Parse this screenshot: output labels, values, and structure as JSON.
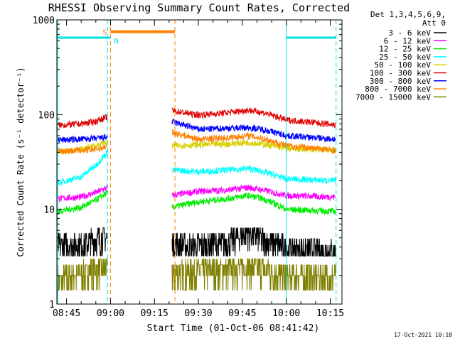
{
  "chart_data": {
    "type": "line",
    "title": "RHESSI Observing Summary Count Rates, Corrected",
    "xlabel": "Start Time (01-Oct-06 08:41:42)",
    "ylabel": "Corrected Count Rate (s⁻¹ detector⁻¹)",
    "y_scale": "log",
    "ylim": [
      1,
      1000
    ],
    "xlim": [
      "08:41:42",
      "10:19:00"
    ],
    "x_ticks": [
      "08:45",
      "09:00",
      "09:15",
      "09:30",
      "09:45",
      "10:00",
      "10:15"
    ],
    "y_ticks": [
      "1",
      "10",
      "100",
      "1000"
    ],
    "legend_position": "top-right",
    "legend_header": [
      "Det 1,3,4,5,6,9,",
      "Att 0"
    ],
    "legend": [
      {
        "label": "3 - 6 keV",
        "color": "#000000"
      },
      {
        "label": "6 - 12 keV",
        "color": "#ff00ff"
      },
      {
        "label": "12 - 25 keV",
        "color": "#00ee00"
      },
      {
        "label": "25 - 50 keV",
        "color": "#00ffff"
      },
      {
        "label": "50 - 100 keV",
        "color": "#d8d000"
      },
      {
        "label": "100 - 300 keV",
        "color": "#e00000"
      },
      {
        "label": "300 - 800 keV",
        "color": "#0000ff"
      },
      {
        "label": "800 - 7000 keV",
        "color": "#ff8000"
      },
      {
        "label": "7000 - 15000 keV",
        "color": "#808000"
      }
    ],
    "flags": {
      "saa": {
        "label": "S",
        "color": "#ff8000",
        "start": "09:00",
        "end": "09:22",
        "level": 750
      },
      "night": {
        "label": "N",
        "color": "#00e0e0",
        "level": 650,
        "intervals": [
          [
            "08:41:42",
            "09:00"
          ],
          [
            "10:00",
            "10:17"
          ]
        ]
      }
    },
    "vertical_markers": [
      {
        "time": "08:42",
        "color": "#00e0e0",
        "style": "solid"
      },
      {
        "time": "08:59",
        "color": "#00e0e0",
        "style": "dashed"
      },
      {
        "time": "09:00",
        "color": "#ff8000",
        "style": "dashed"
      },
      {
        "time": "09:22",
        "color": "#ff8000",
        "style": "dashed"
      },
      {
        "time": "10:00",
        "color": "#00e0e0",
        "style": "solid"
      },
      {
        "time": "10:17",
        "color": "#00e0e0",
        "style": "dashed"
      }
    ],
    "series": [
      {
        "name": "3 - 6 keV",
        "color": "#000000",
        "points": [
          [
            "08:42",
            4.2
          ],
          [
            "08:50",
            4.3
          ],
          [
            "08:55",
            4.8
          ],
          [
            "08:59",
            5.2
          ],
          [
            "09:21",
            4.3
          ],
          [
            "09:30",
            4.1
          ],
          [
            "09:40",
            4.5
          ],
          [
            "09:47",
            5.8
          ],
          [
            "09:52",
            4.8
          ],
          [
            "10:00",
            3.9
          ],
          [
            "10:17",
            3.6
          ]
        ]
      },
      {
        "name": "6 - 12 keV",
        "color": "#ff00ff",
        "points": [
          [
            "08:42",
            13
          ],
          [
            "08:50",
            13.5
          ],
          [
            "08:55",
            15
          ],
          [
            "08:59",
            17
          ],
          [
            "09:21",
            14
          ],
          [
            "09:30",
            15.5
          ],
          [
            "09:40",
            16
          ],
          [
            "09:47",
            17
          ],
          [
            "09:52",
            16
          ],
          [
            "10:00",
            14
          ],
          [
            "10:17",
            13.5
          ]
        ]
      },
      {
        "name": "12 - 25 keV",
        "color": "#00ee00",
        "points": [
          [
            "08:42",
            9.5
          ],
          [
            "08:50",
            10.5
          ],
          [
            "08:55",
            12.5
          ],
          [
            "08:59",
            15
          ],
          [
            "09:21",
            10.5
          ],
          [
            "09:30",
            12
          ],
          [
            "09:40",
            13
          ],
          [
            "09:47",
            14
          ],
          [
            "09:52",
            13
          ],
          [
            "10:00",
            10
          ],
          [
            "10:17",
            9.5
          ]
        ]
      },
      {
        "name": "25 - 50 keV",
        "color": "#00ffff",
        "points": [
          [
            "08:42",
            19
          ],
          [
            "08:50",
            22
          ],
          [
            "08:55",
            29
          ],
          [
            "08:59",
            40
          ],
          [
            "09:21",
            26
          ],
          [
            "09:30",
            25
          ],
          [
            "09:40",
            26
          ],
          [
            "09:47",
            27
          ],
          [
            "09:52",
            25
          ],
          [
            "10:00",
            21
          ],
          [
            "10:17",
            20
          ]
        ]
      },
      {
        "name": "50 - 100 keV",
        "color": "#d8d000",
        "points": [
          [
            "08:42",
            41
          ],
          [
            "08:50",
            43
          ],
          [
            "08:55",
            47
          ],
          [
            "08:59",
            52
          ],
          [
            "09:21",
            47
          ],
          [
            "09:30",
            48
          ],
          [
            "09:40",
            49
          ],
          [
            "09:47",
            51
          ],
          [
            "09:52",
            49
          ],
          [
            "10:00",
            44
          ],
          [
            "10:17",
            42
          ]
        ]
      },
      {
        "name": "100 - 300 keV",
        "color": "#e00000",
        "points": [
          [
            "08:42",
            77
          ],
          [
            "08:50",
            80
          ],
          [
            "08:55",
            85
          ],
          [
            "08:59",
            95
          ],
          [
            "09:21",
            110
          ],
          [
            "09:30",
            99
          ],
          [
            "09:40",
            105
          ],
          [
            "09:47",
            112
          ],
          [
            "09:52",
            105
          ],
          [
            "10:00",
            88
          ],
          [
            "10:17",
            78
          ]
        ]
      },
      {
        "name": "300 - 800 keV",
        "color": "#0000ff",
        "points": [
          [
            "08:42",
            54
          ],
          [
            "08:50",
            55
          ],
          [
            "08:55",
            56
          ],
          [
            "08:59",
            58
          ],
          [
            "09:21",
            84
          ],
          [
            "09:30",
            70
          ],
          [
            "09:40",
            72
          ],
          [
            "09:47",
            73
          ],
          [
            "09:52",
            70
          ],
          [
            "10:00",
            60
          ],
          [
            "10:17",
            55
          ]
        ]
      },
      {
        "name": "800 - 7000 keV",
        "color": "#ff8000",
        "points": [
          [
            "08:42",
            41
          ],
          [
            "08:50",
            42
          ],
          [
            "08:55",
            43
          ],
          [
            "08:59",
            46
          ],
          [
            "09:21",
            65
          ],
          [
            "09:30",
            55
          ],
          [
            "09:40",
            57
          ],
          [
            "09:47",
            60
          ],
          [
            "09:52",
            56
          ],
          [
            "10:00",
            47
          ],
          [
            "10:17",
            42
          ]
        ]
      },
      {
        "name": "7000 - 15000 keV",
        "color": "#808000",
        "points": [
          [
            "08:42",
            1.8
          ],
          [
            "08:50",
            2.1
          ],
          [
            "08:55",
            2.3
          ],
          [
            "08:59",
            2.5
          ],
          [
            "09:21",
            2.1
          ],
          [
            "09:30",
            2.2
          ],
          [
            "09:40",
            2.3
          ],
          [
            "09:47",
            2.5
          ],
          [
            "09:52",
            2.3
          ],
          [
            "10:00",
            2.0
          ],
          [
            "10:17",
            1.9
          ]
        ]
      }
    ],
    "gap": [
      "09:00",
      "09:21"
    ],
    "footer_timestamp": "17-Oct-2021 10:18"
  }
}
